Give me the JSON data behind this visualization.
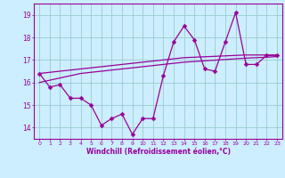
{
  "x": [
    0,
    1,
    2,
    3,
    4,
    5,
    6,
    7,
    8,
    9,
    10,
    11,
    12,
    13,
    14,
    15,
    16,
    17,
    18,
    19,
    20,
    21,
    22,
    23
  ],
  "y_main": [
    16.4,
    15.8,
    15.9,
    15.3,
    15.3,
    15.0,
    14.1,
    14.4,
    14.6,
    13.7,
    14.4,
    14.4,
    16.3,
    17.8,
    18.5,
    17.9,
    16.6,
    16.5,
    17.8,
    19.1,
    16.8,
    16.8,
    17.2,
    17.2
  ],
  "y_trend1": [
    16.4,
    16.45,
    16.5,
    16.55,
    16.6,
    16.65,
    16.7,
    16.75,
    16.8,
    16.85,
    16.9,
    16.95,
    17.0,
    17.05,
    17.1,
    17.12,
    17.14,
    17.16,
    17.18,
    17.2,
    17.22,
    17.22,
    17.22,
    17.22
  ],
  "y_trend2": [
    16.0,
    16.1,
    16.2,
    16.3,
    16.4,
    16.45,
    16.5,
    16.55,
    16.6,
    16.65,
    16.7,
    16.75,
    16.8,
    16.85,
    16.9,
    16.93,
    16.96,
    16.99,
    17.02,
    17.05,
    17.08,
    17.1,
    17.12,
    17.15
  ],
  "color": "#990099",
  "bg_color": "#cceeff",
  "grid_color": "#99cccc",
  "xlabel": "Windchill (Refroidissement éolien,°C)",
  "yticks": [
    14,
    15,
    16,
    17,
    18,
    19
  ],
  "xticks": [
    0,
    1,
    2,
    3,
    4,
    5,
    6,
    7,
    8,
    9,
    10,
    11,
    12,
    13,
    14,
    15,
    16,
    17,
    18,
    19,
    20,
    21,
    22,
    23
  ],
  "xlim": [
    -0.5,
    23.5
  ],
  "ylim": [
    13.5,
    19.5
  ]
}
